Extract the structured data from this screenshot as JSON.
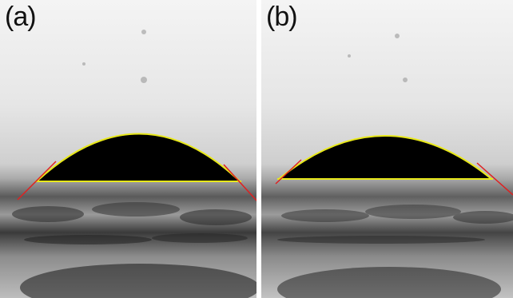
{
  "panels": [
    {
      "label": "(a)"
    },
    {
      "label": "(b)"
    }
  ],
  "colors": {
    "droplet": "#000000",
    "contour": "#e8e81a",
    "tangent": "#e02020",
    "background_top": "#f3f3f3",
    "background_mid": "#bdbdbd",
    "surface": "#3a3a3a"
  }
}
